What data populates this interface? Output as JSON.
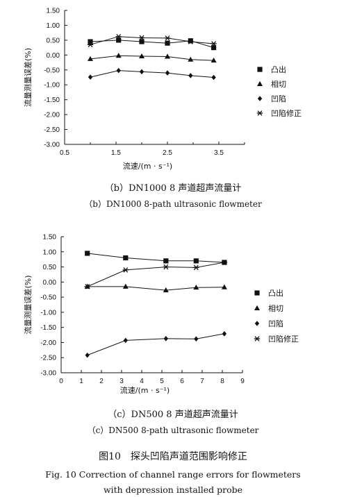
{
  "chart_data": [
    {
      "type": "line",
      "caption_cn": "（b）DN1000 8 声道超声流量计",
      "caption_en": "（b）DN1000 8-path ultrasonic flowmeter",
      "xlabel": "流速/(m · s⁻¹)",
      "ylabel": "流量测量误差(%)",
      "xlim": [
        0.5,
        4.0
      ],
      "ylim": [
        -3.0,
        1.5
      ],
      "xticks": [
        "0.5",
        "1.5",
        "2.5",
        "3.5"
      ],
      "yticks": [
        "1.50",
        "1.00",
        "0.50",
        "0.00",
        "-0.50",
        "-1.00",
        "-1.50",
        "-2.00",
        "-2.50",
        "-3.00"
      ],
      "legend_position": "right",
      "series": [
        {
          "name": "凸出",
          "marker": "square",
          "x": [
            1.0,
            1.55,
            2.0,
            2.5,
            2.95,
            3.4
          ],
          "y": [
            0.45,
            0.5,
            0.45,
            0.4,
            0.48,
            0.25
          ]
        },
        {
          "name": "相切",
          "marker": "triangle",
          "x": [
            1.0,
            1.55,
            2.0,
            2.5,
            2.95,
            3.4
          ],
          "y": [
            -0.13,
            -0.02,
            -0.04,
            -0.05,
            -0.15,
            -0.18
          ]
        },
        {
          "name": "凹陷",
          "marker": "diamond",
          "x": [
            1.0,
            1.55,
            2.0,
            2.5,
            2.95,
            3.4
          ],
          "y": [
            -0.74,
            -0.52,
            -0.56,
            -0.6,
            -0.69,
            -0.75
          ]
        },
        {
          "name": "凹陷修正",
          "marker": "star",
          "x": [
            1.0,
            1.55,
            2.0,
            2.5,
            2.95,
            3.4
          ],
          "y": [
            0.35,
            0.62,
            0.58,
            0.57,
            0.45,
            0.38
          ]
        }
      ]
    },
    {
      "type": "line",
      "caption_cn": "（c）DN500 8 声道超声流量计",
      "caption_en": "（c）DN500 8-path ultrasonic flowmeter",
      "xlabel": "流速/(m · s⁻¹)",
      "ylabel": "流量测量误差(%)",
      "xlim": [
        0,
        9
      ],
      "ylim": [
        -3.0,
        1.5
      ],
      "xticks": [
        "0",
        "1",
        "2",
        "3",
        "4",
        "5",
        "6",
        "7",
        "8",
        "9"
      ],
      "yticks": [
        "1.50",
        "1.00",
        "0.50",
        "0.00",
        "-0.50",
        "-1.00",
        "-1.50",
        "-2.00",
        "-2.50",
        "-3.00"
      ],
      "legend_position": "right",
      "series": [
        {
          "name": "凸出",
          "marker": "square",
          "x": [
            1.3,
            3.2,
            5.2,
            6.7,
            8.1
          ],
          "y": [
            0.95,
            0.8,
            0.7,
            0.7,
            0.65
          ]
        },
        {
          "name": "相切",
          "marker": "triangle",
          "x": [
            1.3,
            3.2,
            5.2,
            6.7,
            8.1
          ],
          "y": [
            -0.15,
            -0.15,
            -0.27,
            -0.18,
            -0.17
          ]
        },
        {
          "name": "凹陷",
          "marker": "diamond",
          "x": [
            1.3,
            3.2,
            5.2,
            6.7,
            8.1
          ],
          "y": [
            -2.42,
            -1.93,
            -1.87,
            -1.88,
            -1.71
          ]
        },
        {
          "name": "凹陷修正",
          "marker": "star",
          "x": [
            1.3,
            3.2,
            5.2,
            6.7,
            8.1
          ],
          "y": [
            -0.15,
            0.4,
            0.5,
            0.48,
            0.65
          ]
        }
      ]
    }
  ],
  "figure": {
    "title_cn": "图10　探头凹陷声道范围影响修正",
    "title_en_line1": "Fig. 10 Correction of channel range errors for flowmeters",
    "title_en_line2": "with depression installed probe"
  }
}
